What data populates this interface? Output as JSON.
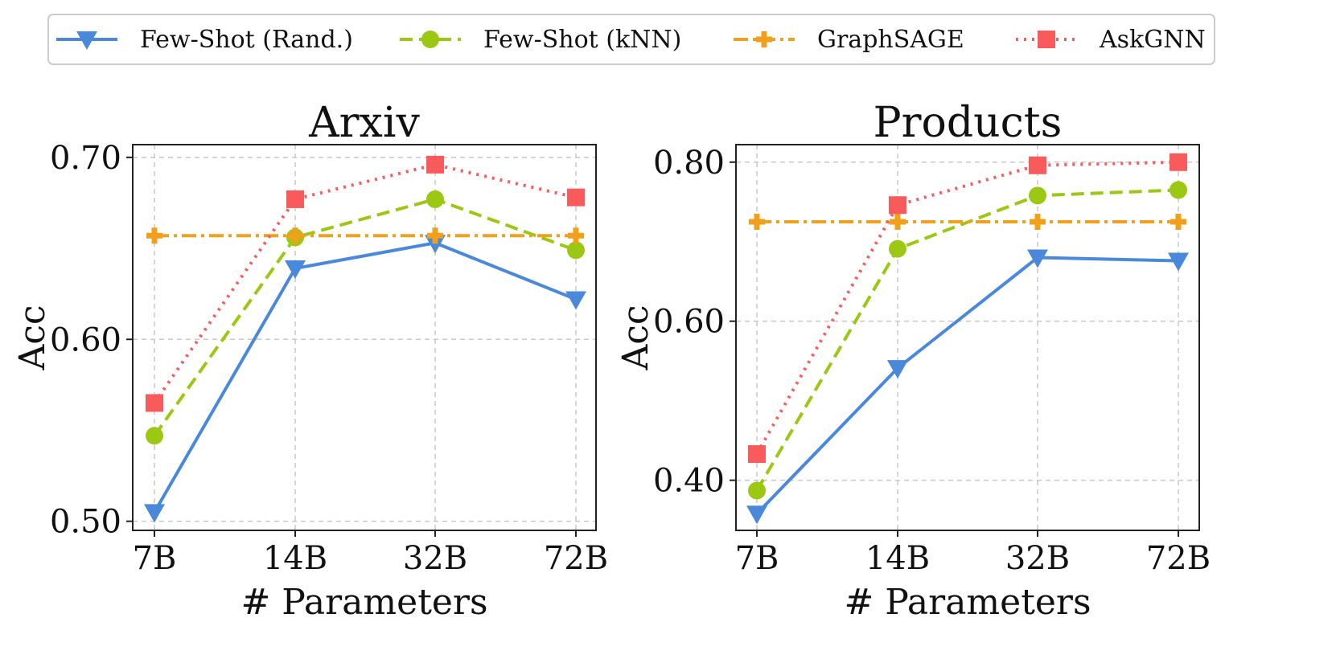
{
  "legend": {
    "entries": [
      {
        "label": "Few-Shot (Rand.)",
        "series": "few_shot_rand"
      },
      {
        "label": "Few-Shot (kNN)",
        "series": "few_shot_knn"
      },
      {
        "label": "GraphSAGE",
        "series": "graphsage"
      },
      {
        "label": "AskGNN",
        "series": "askgnn"
      }
    ]
  },
  "series_styles": {
    "few_shot_rand": {
      "color": "#4a88dc",
      "dash": "solid",
      "marker": "triangle-down"
    },
    "few_shot_knn": {
      "color": "#9cc813",
      "dash": "dashed",
      "marker": "circle"
    },
    "graphsage": {
      "color": "#f0a01a",
      "dash": "dashdot",
      "marker": "plus"
    },
    "askgnn": {
      "color": "#f95b5c",
      "dash": "dotted",
      "marker": "square"
    }
  },
  "chart_data": [
    {
      "type": "line",
      "title": "Arxiv",
      "xlabel": "# Parameters",
      "ylabel": "Acc",
      "categories": [
        "7B",
        "14B",
        "32B",
        "72B"
      ],
      "ylim": [
        0.495,
        0.707
      ],
      "yticks": [
        0.5,
        0.6,
        0.7
      ],
      "ytick_labels": [
        "0.50",
        "0.60",
        "0.70"
      ],
      "grid": true,
      "series": [
        {
          "key": "few_shot_rand",
          "name": "Few-Shot (Rand.)",
          "values": [
            0.505,
            0.639,
            0.653,
            0.622
          ]
        },
        {
          "key": "few_shot_knn",
          "name": "Few-Shot (kNN)",
          "values": [
            0.547,
            0.656,
            0.677,
            0.649
          ]
        },
        {
          "key": "graphsage",
          "name": "GraphSAGE",
          "values": [
            0.657,
            0.657,
            0.657,
            0.657
          ]
        },
        {
          "key": "askgnn",
          "name": "AskGNN",
          "values": [
            0.565,
            0.677,
            0.696,
            0.678
          ]
        }
      ]
    },
    {
      "type": "line",
      "title": "Products",
      "xlabel": "# Parameters",
      "ylabel": "Acc",
      "categories": [
        "7B",
        "14B",
        "32B",
        "72B"
      ],
      "ylim": [
        0.337,
        0.822
      ],
      "yticks": [
        0.4,
        0.6,
        0.8
      ],
      "ytick_labels": [
        "0.40",
        "0.60",
        "0.80"
      ],
      "grid": true,
      "series": [
        {
          "key": "few_shot_rand",
          "name": "Few-Shot (Rand.)",
          "values": [
            0.358,
            0.541,
            0.68,
            0.676
          ]
        },
        {
          "key": "few_shot_knn",
          "name": "Few-Shot (kNN)",
          "values": [
            0.387,
            0.691,
            0.758,
            0.765
          ]
        },
        {
          "key": "graphsage",
          "name": "GraphSAGE",
          "values": [
            0.725,
            0.725,
            0.725,
            0.725
          ]
        },
        {
          "key": "askgnn",
          "name": "AskGNN",
          "values": [
            0.433,
            0.746,
            0.796,
            0.8
          ]
        }
      ]
    }
  ]
}
